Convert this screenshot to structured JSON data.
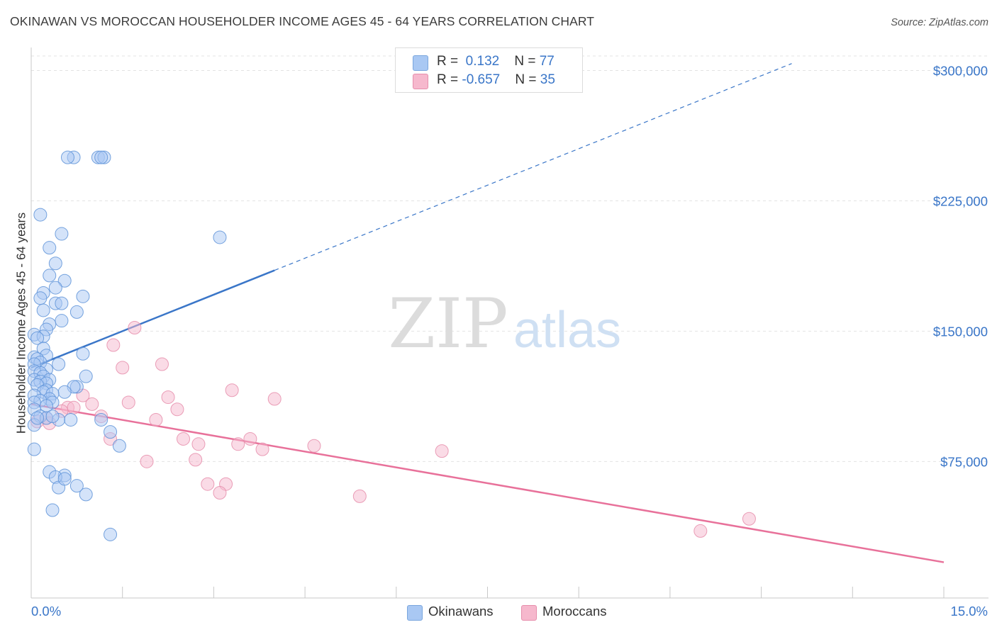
{
  "title": "OKINAWAN VS MOROCCAN HOUSEHOLDER INCOME AGES 45 - 64 YEARS CORRELATION CHART",
  "source": "Source: ZipAtlas.com",
  "watermark": {
    "zip": "ZIP",
    "atlas": "atlas"
  },
  "legend_top": {
    "rows": [
      {
        "r_label": "R = ",
        "r_value": " 0.132",
        "n_label": "N = ",
        "n_value": "77",
        "color": "#a9c8f3"
      },
      {
        "r_label": "R = ",
        "r_value": "-0.657",
        "n_label": "N = ",
        "n_value": "35",
        "color": "#f6b8cd"
      }
    ]
  },
  "legend_bottom": [
    {
      "label": "Okinawans",
      "color": "#a9c8f3"
    },
    {
      "label": "Moroccans",
      "color": "#f6b8cd"
    }
  ],
  "colors": {
    "blue": "#3a76c8",
    "pink": "#e8719a",
    "blue_fill": "#a9c8f3",
    "pink_fill": "#f6b8cd",
    "grid": "#e3e3e3",
    "tick_label": "#3a76c8"
  },
  "chart_data": {
    "type": "scatter",
    "title": "OKINAWAN VS MOROCCAN HOUSEHOLDER INCOME AGES 45 - 64 YEARS CORRELATION CHART",
    "xlabel": "",
    "ylabel": "Householder Income Ages 45 - 64 years",
    "x_tick_labels": [
      "0.0%",
      "15.0%"
    ],
    "y_tick_labels": [
      "$75,000",
      "$150,000",
      "$225,000",
      "$300,000"
    ],
    "y_ticks": [
      75000,
      150000,
      225000,
      300000
    ],
    "xlim": [
      0,
      15
    ],
    "ylim": [
      5000,
      310000
    ],
    "grid": true,
    "legend_position": "top-center",
    "series": [
      {
        "name": "Okinawans",
        "r": 0.132,
        "n": 77,
        "trend": {
          "x0": 0.0,
          "y0": 129000,
          "x1": 4.0,
          "y1": 185000,
          "dashed_to_x": 12.5
        },
        "points": [
          [
            0.7,
            250000
          ],
          [
            0.6,
            250000
          ],
          [
            1.1,
            250000
          ],
          [
            1.2,
            250000
          ],
          [
            1.15,
            250000
          ],
          [
            0.15,
            217000
          ],
          [
            0.5,
            206000
          ],
          [
            3.1,
            204000
          ],
          [
            0.3,
            198000
          ],
          [
            0.4,
            189000
          ],
          [
            0.3,
            182000
          ],
          [
            0.55,
            179000
          ],
          [
            0.4,
            175000
          ],
          [
            0.2,
            172000
          ],
          [
            0.85,
            170000
          ],
          [
            0.15,
            169000
          ],
          [
            0.4,
            166000
          ],
          [
            0.5,
            166000
          ],
          [
            0.2,
            162000
          ],
          [
            0.75,
            161000
          ],
          [
            0.5,
            156000
          ],
          [
            0.3,
            154000
          ],
          [
            0.25,
            151000
          ],
          [
            0.05,
            148000
          ],
          [
            0.2,
            147000
          ],
          [
            0.1,
            146000
          ],
          [
            0.2,
            140000
          ],
          [
            0.85,
            137000
          ],
          [
            0.25,
            136000
          ],
          [
            0.05,
            135000
          ],
          [
            0.1,
            134000
          ],
          [
            0.15,
            132000
          ],
          [
            0.05,
            131000
          ],
          [
            0.45,
            131000
          ],
          [
            0.25,
            128000
          ],
          [
            0.05,
            127000
          ],
          [
            0.15,
            126000
          ],
          [
            0.2,
            124000
          ],
          [
            0.9,
            124000
          ],
          [
            0.05,
            122000
          ],
          [
            0.3,
            122000
          ],
          [
            0.15,
            121000
          ],
          [
            0.25,
            120000
          ],
          [
            0.1,
            119000
          ],
          [
            0.75,
            118000
          ],
          [
            0.7,
            118000
          ],
          [
            0.25,
            116000
          ],
          [
            0.55,
            115000
          ],
          [
            0.2,
            115000
          ],
          [
            0.35,
            114000
          ],
          [
            0.05,
            113000
          ],
          [
            0.3,
            111000
          ],
          [
            0.15,
            110000
          ],
          [
            0.05,
            109000
          ],
          [
            0.35,
            109000
          ],
          [
            0.25,
            107000
          ],
          [
            0.05,
            105000
          ],
          [
            0.15,
            101000
          ],
          [
            0.25,
            100000
          ],
          [
            0.45,
            99000
          ],
          [
            0.65,
            99000
          ],
          [
            1.15,
            99000
          ],
          [
            0.05,
            96000
          ],
          [
            1.3,
            92000
          ],
          [
            1.45,
            84000
          ],
          [
            0.05,
            82000
          ],
          [
            0.3,
            69000
          ],
          [
            0.55,
            67000
          ],
          [
            0.4,
            66000
          ],
          [
            0.45,
            60000
          ],
          [
            0.75,
            61000
          ],
          [
            0.9,
            56000
          ],
          [
            0.35,
            47000
          ],
          [
            1.3,
            33000
          ],
          [
            0.55,
            65000
          ],
          [
            0.1,
            100000
          ],
          [
            0.35,
            101000
          ]
        ]
      },
      {
        "name": "Moroccans",
        "r": -0.657,
        "n": 35,
        "trend": {
          "x0": 0.0,
          "y0": 108000,
          "x1": 15.0,
          "y1": 17000
        },
        "points": [
          [
            1.7,
            152000
          ],
          [
            1.35,
            142000
          ],
          [
            2.15,
            131000
          ],
          [
            1.5,
            129000
          ],
          [
            3.3,
            116000
          ],
          [
            0.85,
            113000
          ],
          [
            2.25,
            112000
          ],
          [
            4.0,
            111000
          ],
          [
            1.6,
            109000
          ],
          [
            1.0,
            108000
          ],
          [
            0.6,
            106000
          ],
          [
            0.7,
            106000
          ],
          [
            2.4,
            105000
          ],
          [
            0.5,
            104000
          ],
          [
            1.15,
            101000
          ],
          [
            2.05,
            99000
          ],
          [
            0.25,
            100000
          ],
          [
            0.1,
            98000
          ],
          [
            0.3,
            97000
          ],
          [
            1.3,
            88000
          ],
          [
            2.5,
            88000
          ],
          [
            3.6,
            88000
          ],
          [
            2.75,
            85000
          ],
          [
            3.4,
            85000
          ],
          [
            3.8,
            82000
          ],
          [
            4.65,
            84000
          ],
          [
            6.75,
            81000
          ],
          [
            1.9,
            75000
          ],
          [
            2.7,
            76000
          ],
          [
            2.9,
            62000
          ],
          [
            3.2,
            62000
          ],
          [
            3.1,
            57000
          ],
          [
            5.4,
            55000
          ],
          [
            11.8,
            42000
          ],
          [
            11.0,
            35000
          ]
        ]
      }
    ]
  }
}
